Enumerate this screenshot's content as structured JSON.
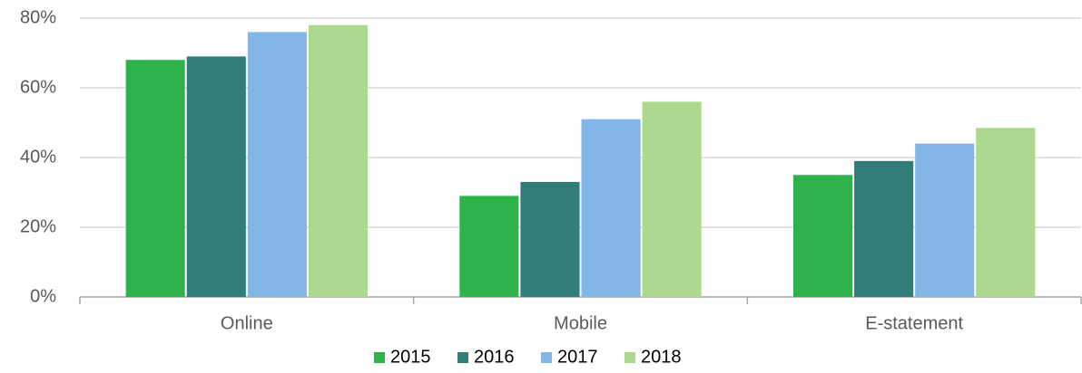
{
  "chart_data": {
    "type": "bar",
    "categories": [
      "Online",
      "Mobile",
      "E-statement"
    ],
    "series": [
      {
        "name": "2015",
        "color": "#2db34a",
        "values": [
          68,
          29,
          35
        ]
      },
      {
        "name": "2016",
        "color": "#317d7a",
        "values": [
          69,
          33,
          39
        ]
      },
      {
        "name": "2017",
        "color": "#82b6e6",
        "values": [
          76,
          51,
          44
        ]
      },
      {
        "name": "2018",
        "color": "#acd98e",
        "values": [
          78,
          56,
          48.5
        ]
      }
    ],
    "ylim": [
      0,
      80
    ],
    "yticks": [
      {
        "value": 0,
        "label": "0%"
      },
      {
        "value": 20,
        "label": "20%"
      },
      {
        "value": 40,
        "label": "40%"
      },
      {
        "value": 60,
        "label": "60%"
      },
      {
        "value": 80,
        "label": "80%"
      }
    ],
    "grid": true,
    "legend": "bottom"
  }
}
